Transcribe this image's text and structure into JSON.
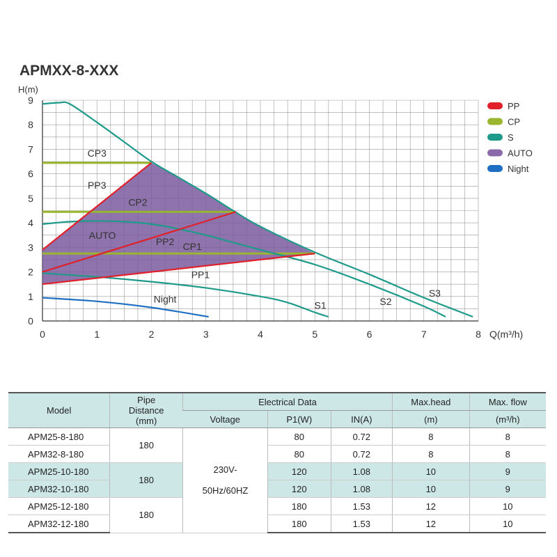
{
  "chart_data": {
    "type": "line",
    "title": "APMXX-8-XXX",
    "xlabel": "Q(m³/h)",
    "ylabel": "H(m)",
    "xlim": [
      0,
      8
    ],
    "ylim": [
      0,
      9
    ],
    "xticks": [
      "0",
      "1",
      "2",
      "3",
      "4",
      "5",
      "6",
      "7",
      "8"
    ],
    "yticks": [
      "0",
      "1",
      "2",
      "3",
      "4",
      "5",
      "6",
      "7",
      "8",
      "9"
    ],
    "grid": true,
    "legend_position": "right",
    "legend": [
      {
        "name": "PP",
        "color": "#e0202a"
      },
      {
        "name": "CP",
        "color": "#9ab52e"
      },
      {
        "name": "S",
        "color": "#1e9a8a"
      },
      {
        "name": "AUTO",
        "color": "#8a6aa8"
      },
      {
        "name": "Night",
        "color": "#1e6fc4"
      }
    ],
    "series": [
      {
        "group": "S",
        "label": "S3",
        "color": "#1e9a8a",
        "points": [
          [
            0,
            8.85
          ],
          [
            0.3,
            8.9
          ],
          [
            0.5,
            8.85
          ],
          [
            1,
            8.1
          ],
          [
            1.5,
            7.3
          ],
          [
            2,
            6.5
          ],
          [
            2.5,
            5.85
          ],
          [
            3,
            5.2
          ],
          [
            3.5,
            4.5
          ],
          [
            4,
            3.85
          ],
          [
            5,
            2.8
          ],
          [
            6,
            1.9
          ],
          [
            7,
            0.95
          ],
          [
            7.9,
            0.17
          ]
        ]
      },
      {
        "group": "S",
        "label": "S2",
        "color": "#1e9a8a",
        "points": [
          [
            0,
            3.95
          ],
          [
            0.5,
            4.05
          ],
          [
            1,
            4.08
          ],
          [
            1.5,
            4.05
          ],
          [
            2,
            3.95
          ],
          [
            2.5,
            3.75
          ],
          [
            3,
            3.5
          ],
          [
            3.5,
            3.2
          ],
          [
            4,
            2.9
          ],
          [
            5,
            2.3
          ],
          [
            6,
            1.5
          ],
          [
            7,
            0.6
          ],
          [
            7.4,
            0.17
          ]
        ]
      },
      {
        "group": "S",
        "label": "S1",
        "color": "#1e9a8a",
        "points": [
          [
            0,
            1.95
          ],
          [
            1,
            1.8
          ],
          [
            2,
            1.6
          ],
          [
            3,
            1.35
          ],
          [
            4,
            1.0
          ],
          [
            4.5,
            0.75
          ],
          [
            5,
            0.35
          ],
          [
            5.25,
            0.17
          ]
        ]
      },
      {
        "group": "Night",
        "label": "Night",
        "color": "#1e6fc4",
        "points": [
          [
            0,
            0.95
          ],
          [
            1,
            0.8
          ],
          [
            2,
            0.55
          ],
          [
            3.05,
            0.17
          ]
        ]
      },
      {
        "group": "PP",
        "label": "PP3",
        "color": "#e0202a",
        "points": [
          [
            0,
            2.9
          ],
          [
            2,
            6.45
          ]
        ]
      },
      {
        "group": "PP",
        "label": "PP2",
        "color": "#e0202a",
        "points": [
          [
            0,
            2.0
          ],
          [
            3.55,
            4.45
          ]
        ]
      },
      {
        "group": "PP",
        "label": "PP1",
        "color": "#e0202a",
        "points": [
          [
            0,
            1.5
          ],
          [
            5,
            2.75
          ]
        ]
      },
      {
        "group": "CP",
        "label": "CP3",
        "color": "#9ab52e",
        "points": [
          [
            0,
            6.45
          ],
          [
            2,
            6.45
          ]
        ]
      },
      {
        "group": "CP",
        "label": "CP2",
        "color": "#9ab52e",
        "points": [
          [
            0,
            4.45
          ],
          [
            3.55,
            4.45
          ]
        ]
      },
      {
        "group": "CP",
        "label": "CP1",
        "color": "#9ab52e",
        "points": [
          [
            0,
            2.75
          ],
          [
            5,
            2.75
          ]
        ]
      }
    ],
    "auto_region": {
      "label": "AUTO",
      "color": "#7a5a9e",
      "points": [
        [
          0,
          1.5
        ],
        [
          0,
          2.9
        ],
        [
          2,
          6.45
        ],
        [
          2.5,
          5.85
        ],
        [
          3,
          5.2
        ],
        [
          3.5,
          4.5
        ],
        [
          4,
          3.85
        ],
        [
          5,
          2.75
        ]
      ]
    },
    "annotations": [
      {
        "text": "CP3",
        "x": 1.0,
        "y": 6.7
      },
      {
        "text": "PP3",
        "x": 1.0,
        "y": 5.4
      },
      {
        "text": "CP2",
        "x": 1.75,
        "y": 4.7
      },
      {
        "text": "AUTO",
        "x": 1.1,
        "y": 3.35
      },
      {
        "text": "PP2",
        "x": 2.25,
        "y": 3.1
      },
      {
        "text": "CP1",
        "x": 2.75,
        "y": 2.9
      },
      {
        "text": "PP1",
        "x": 2.9,
        "y": 1.75
      },
      {
        "text": "Night",
        "x": 2.25,
        "y": 0.75
      },
      {
        "text": "S1",
        "x": 5.1,
        "y": 0.5
      },
      {
        "text": "S2",
        "x": 6.3,
        "y": 0.65
      },
      {
        "text": "S3",
        "x": 7.2,
        "y": 1.0
      }
    ]
  },
  "table": {
    "headers": {
      "model": "Model",
      "pipe": [
        "Pipe",
        "Distance",
        "(mm)"
      ],
      "electrical": "Electrical Data",
      "voltage": "Voltage",
      "p1": "P1(W)",
      "in": "IN(A)",
      "maxhead": [
        "Max.head",
        "(m)"
      ],
      "maxflow": [
        "Max. flow",
        "(m³/h)"
      ]
    },
    "voltage_value": [
      "230V-",
      "50Hz/60HZ"
    ],
    "pipe_groups": [
      "180",
      "180",
      "180"
    ],
    "rows": [
      {
        "model": "APM25-8-180",
        "p1": "80",
        "in": "0.72",
        "head": "8",
        "flow": "8"
      },
      {
        "model": "APM32-8-180",
        "p1": "80",
        "in": "0.72",
        "head": "8",
        "flow": "8"
      },
      {
        "model": "APM25-10-180",
        "p1": "120",
        "in": "1.08",
        "head": "10",
        "flow": "9"
      },
      {
        "model": "APM32-10-180",
        "p1": "120",
        "in": "1.08",
        "head": "10",
        "flow": "9"
      },
      {
        "model": "APM25-12-180",
        "p1": "180",
        "in": "1.53",
        "head": "12",
        "flow": "10"
      },
      {
        "model": "APM32-12-180",
        "p1": "180",
        "in": "1.53",
        "head": "12",
        "flow": "10"
      }
    ]
  }
}
